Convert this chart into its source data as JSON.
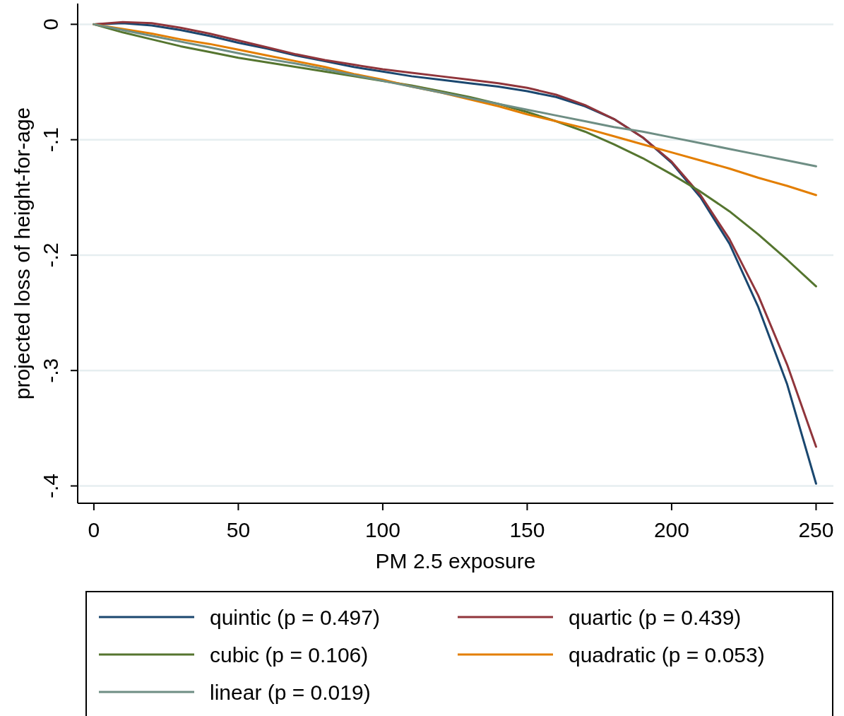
{
  "chart_data": {
    "type": "line",
    "xlabel": "PM 2.5 exposure",
    "ylabel": "projected loss of height-for-age",
    "x": [
      0,
      10,
      20,
      30,
      40,
      50,
      60,
      70,
      80,
      90,
      100,
      110,
      120,
      130,
      140,
      150,
      160,
      170,
      180,
      190,
      200,
      210,
      220,
      230,
      240,
      250
    ],
    "xlim": [
      -5.6,
      256
    ],
    "xticks": [
      0,
      50,
      100,
      150,
      200,
      250
    ],
    "ylim": [
      -0.415,
      0.018
    ],
    "yticks": [
      {
        "value": 0,
        "label": "0"
      },
      {
        "value": -0.1,
        "label": "-.1"
      },
      {
        "value": -0.2,
        "label": "-.2"
      },
      {
        "value": -0.3,
        "label": "-.3"
      },
      {
        "value": -0.4,
        "label": "-.4"
      }
    ],
    "grid": "y",
    "legend": "bottom",
    "line_style": "solid",
    "series": [
      {
        "name": "quintic (p = 0.497)",
        "color": "#1a476f",
        "values": [
          0,
          0.001,
          -0.001,
          -0.005,
          -0.01,
          -0.016,
          -0.021,
          -0.027,
          -0.032,
          -0.037,
          -0.041,
          -0.045,
          -0.048,
          -0.051,
          -0.054,
          -0.058,
          -0.063,
          -0.071,
          -0.082,
          -0.098,
          -0.12,
          -0.15,
          -0.19,
          -0.245,
          -0.312,
          -0.398
        ]
      },
      {
        "name": "quartic (p = 0.439)",
        "color": "#90353b",
        "values": [
          0,
          0.002,
          0.001,
          -0.003,
          -0.008,
          -0.014,
          -0.02,
          -0.026,
          -0.031,
          -0.035,
          -0.039,
          -0.042,
          -0.045,
          -0.048,
          -0.051,
          -0.055,
          -0.061,
          -0.07,
          -0.082,
          -0.098,
          -0.119,
          -0.148,
          -0.186,
          -0.235,
          -0.295,
          -0.366
        ]
      },
      {
        "name": "cubic (p = 0.106)",
        "color": "#55752f",
        "values": [
          0,
          -0.007,
          -0.013,
          -0.019,
          -0.024,
          -0.029,
          -0.033,
          -0.037,
          -0.041,
          -0.045,
          -0.049,
          -0.053,
          -0.058,
          -0.063,
          -0.069,
          -0.076,
          -0.084,
          -0.093,
          -0.104,
          -0.116,
          -0.13,
          -0.145,
          -0.162,
          -0.182,
          -0.204,
          -0.227
        ]
      },
      {
        "name": "quadratic (p = 0.053)",
        "color": "#e37e00",
        "values": [
          0,
          -0.004,
          -0.008,
          -0.013,
          -0.017,
          -0.022,
          -0.027,
          -0.032,
          -0.037,
          -0.043,
          -0.048,
          -0.054,
          -0.059,
          -0.065,
          -0.071,
          -0.078,
          -0.084,
          -0.09,
          -0.097,
          -0.104,
          -0.111,
          -0.118,
          -0.125,
          -0.133,
          -0.14,
          -0.148
        ]
      },
      {
        "name": "linear (p = 0.019)",
        "color": "#6e8e84",
        "values": [
          0,
          -0.005,
          -0.01,
          -0.015,
          -0.02,
          -0.025,
          -0.03,
          -0.034,
          -0.039,
          -0.044,
          -0.049,
          -0.054,
          -0.059,
          -0.064,
          -0.069,
          -0.074,
          -0.079,
          -0.084,
          -0.089,
          -0.093,
          -0.098,
          -0.103,
          -0.108,
          -0.113,
          -0.118,
          -0.123
        ]
      }
    ]
  }
}
